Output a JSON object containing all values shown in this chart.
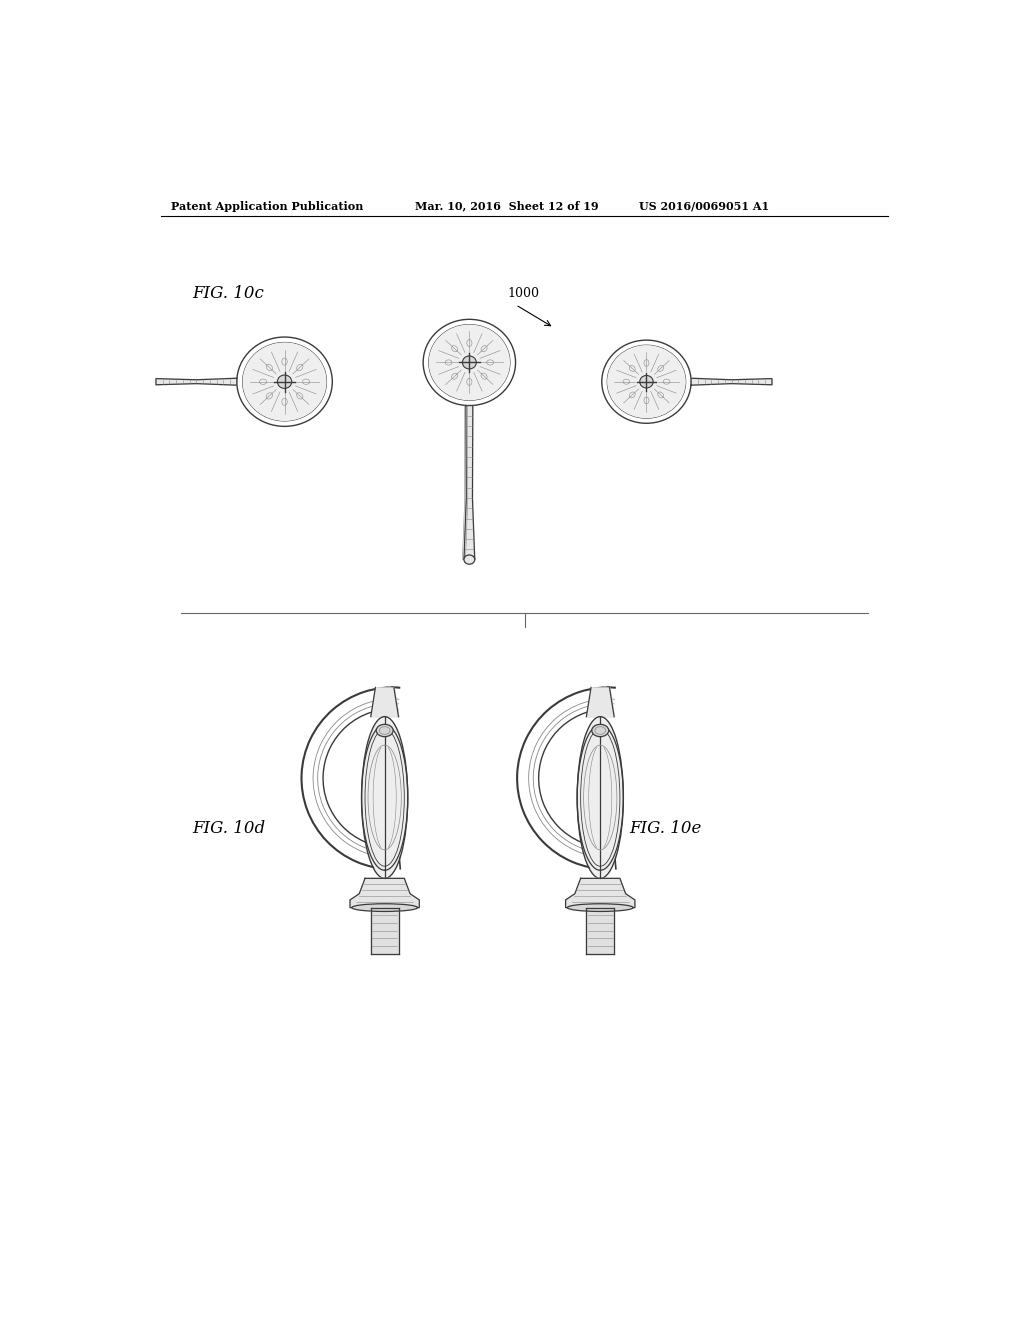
{
  "background_color": "#ffffff",
  "header_text_left": "Patent Application Publication",
  "header_text_mid": "Mar. 10, 2016  Sheet 12 of 19",
  "header_text_right": "US 2016/0069051 A1",
  "fig_10c_label": "FIG. 10c",
  "fig_10d_label": "FIG. 10d",
  "fig_10e_label": "FIG. 10e",
  "label_1000": "1000",
  "color_line": "#3a3a3a",
  "color_light": "#888888",
  "color_bg": "#f5f5f0"
}
